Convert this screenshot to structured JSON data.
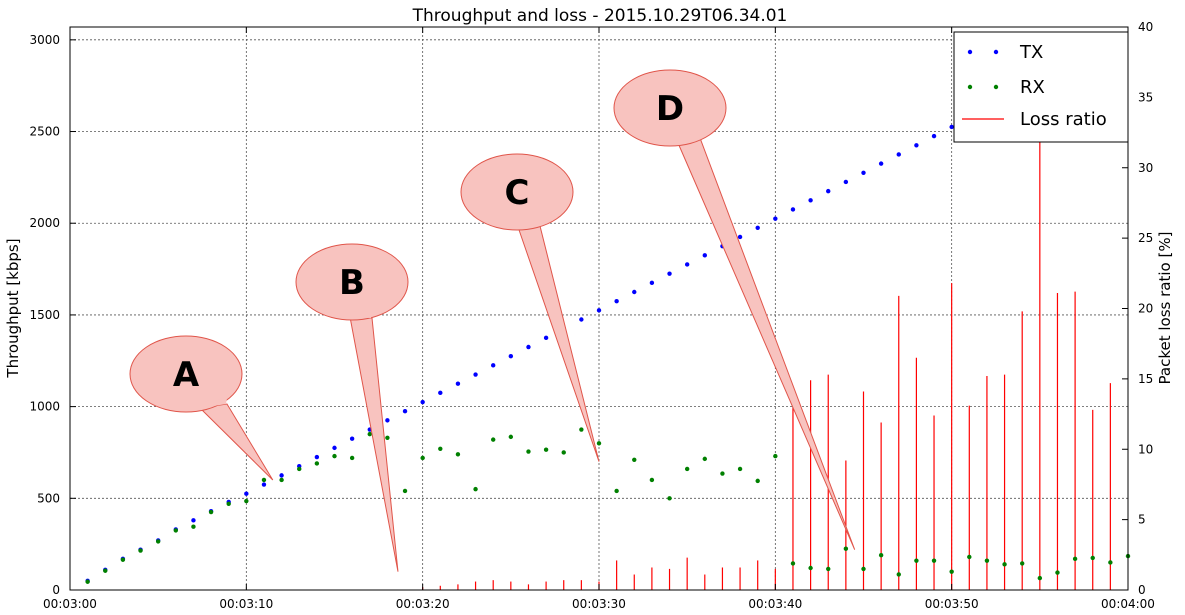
{
  "chart_data": {
    "type": "scatter",
    "title": "Throughput and loss - 2015.10.29T06.34.01",
    "ylabel": "Throughput [kbps]",
    "ylabel_right": "Packet loss ratio [%]",
    "xlim": [
      180,
      240
    ],
    "ylim": [
      0,
      3070
    ],
    "ylim_right": [
      0,
      40
    ],
    "grid": true,
    "legend_position": "top-right",
    "x_ticks": [
      180,
      190,
      200,
      210,
      220,
      230,
      240
    ],
    "x_tick_labels": [
      "00:03:00",
      "00:03:10",
      "00:03:20",
      "00:03:30",
      "00:03:40",
      "00:03:50",
      "00:04:00"
    ],
    "y_ticks": [
      0,
      500,
      1000,
      1500,
      2000,
      2500,
      3000
    ],
    "y_tick_labels": [
      "0",
      "500",
      "1000",
      "1500",
      "2000",
      "2500",
      "3000"
    ],
    "y_right_ticks": [
      0,
      5,
      10,
      15,
      20,
      25,
      30,
      35,
      40
    ],
    "y_right_tick_labels": [
      "0",
      "5",
      "10",
      "15",
      "20",
      "25",
      "30",
      "35",
      "40"
    ],
    "series": [
      {
        "name": "TX",
        "color": "#0000ff",
        "kind": "points",
        "axis": "left",
        "x": [
          181,
          182,
          183,
          184,
          185,
          186,
          187,
          188,
          189,
          190,
          191,
          192,
          193,
          194,
          195,
          196,
          197,
          198,
          199,
          200,
          201,
          202,
          203,
          204,
          205,
          206,
          207,
          208,
          209,
          210,
          211,
          212,
          213,
          214,
          215,
          216,
          217,
          218,
          219,
          220,
          221,
          222,
          223,
          224,
          225,
          226,
          227,
          228,
          229,
          230,
          231,
          232,
          233,
          234,
          235,
          236,
          237,
          238,
          239
        ],
        "y": [
          50,
          110,
          170,
          220,
          270,
          330,
          380,
          430,
          480,
          525,
          575,
          625,
          675,
          725,
          775,
          825,
          875,
          925,
          975,
          1025,
          1075,
          1125,
          1175,
          1225,
          1275,
          1325,
          1375,
          1425,
          1475,
          1525,
          1575,
          1625,
          1675,
          1725,
          1775,
          1825,
          1875,
          1925,
          1975,
          2025,
          2075,
          2125,
          2175,
          2225,
          2275,
          2325,
          2375,
          2425,
          2475,
          2525,
          2575,
          2625,
          2675,
          2725,
          2775,
          2825,
          2875,
          2925,
          2975
        ]
      },
      {
        "name": "RX",
        "color": "#008000",
        "kind": "points",
        "axis": "left",
        "x": [
          181,
          182,
          183,
          184,
          185,
          186,
          187,
          188,
          189,
          190,
          191,
          192,
          193,
          194,
          195,
          196,
          197,
          198,
          199,
          200,
          201,
          202,
          203,
          204,
          205,
          206,
          207,
          208,
          209,
          210,
          211,
          212,
          213,
          214,
          215,
          216,
          217,
          218,
          219,
          220,
          221,
          222,
          223,
          224,
          225,
          226,
          227,
          228,
          229,
          230,
          231,
          232,
          233,
          234,
          235,
          236,
          237,
          238,
          239,
          240
        ],
        "y": [
          45,
          105,
          165,
          215,
          265,
          325,
          345,
          425,
          470,
          485,
          600,
          600,
          660,
          690,
          730,
          720,
          850,
          830,
          540,
          720,
          770,
          740,
          550,
          820,
          835,
          755,
          765,
          750,
          875,
          800,
          540,
          710,
          600,
          500,
          660,
          715,
          635,
          660,
          595,
          730,
          145,
          120,
          115,
          225,
          115,
          190,
          85,
          160,
          160,
          100,
          180,
          160,
          140,
          145,
          65,
          95,
          170,
          175,
          150,
          185
        ]
      },
      {
        "name": "Loss ratio",
        "color": "#ff0000",
        "kind": "impulses",
        "axis": "right",
        "x": [
          181,
          182,
          183,
          184,
          185,
          186,
          187,
          188,
          189,
          190,
          191,
          192,
          193,
          194,
          195,
          196,
          197,
          198,
          199,
          200,
          201,
          202,
          203,
          204,
          205,
          206,
          207,
          208,
          209,
          210,
          211,
          212,
          213,
          214,
          215,
          216,
          217,
          218,
          219,
          220,
          221,
          222,
          223,
          224,
          225,
          226,
          227,
          228,
          229,
          230,
          231,
          232,
          233,
          234,
          235,
          236,
          237,
          238,
          239,
          240
        ],
        "y": [
          0,
          0,
          0,
          0,
          0,
          0,
          0,
          0,
          0,
          0,
          0,
          0,
          0,
          0,
          0,
          0,
          0,
          0,
          0,
          0.2,
          0.3,
          0.4,
          0.6,
          0.7,
          0.6,
          0.4,
          0.6,
          0.7,
          0.7,
          0.6,
          2.1,
          1.1,
          1.6,
          1.5,
          2.3,
          1.1,
          1.6,
          1.6,
          2.1,
          1.5,
          13.8,
          14.9,
          15.3,
          9.2,
          14.1,
          11.9,
          20.9,
          16.5,
          12.4,
          21.8,
          13.1,
          15.2,
          15.3,
          19.8,
          36.0,
          21.1,
          21.2,
          12.8,
          14.7,
          0
        ]
      }
    ],
    "annotations": [
      {
        "text": "A",
        "target_x": 191.5,
        "target_y": 600
      },
      {
        "text": "B",
        "target_x": 198.6,
        "target_y": 100
      },
      {
        "text": "C",
        "target_x": 210,
        "target_y": 700
      },
      {
        "text": "D",
        "target_x": 224.5,
        "target_y": 220
      }
    ]
  }
}
